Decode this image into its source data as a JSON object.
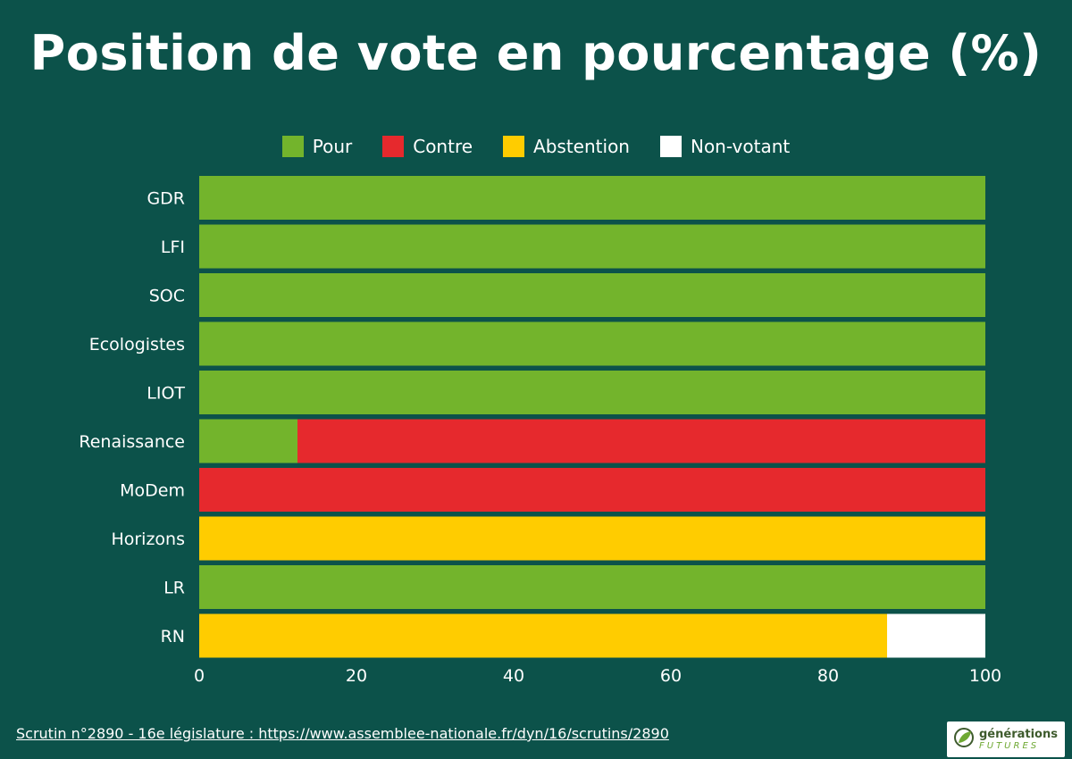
{
  "chart_data": {
    "type": "bar",
    "orientation": "horizontal",
    "stacked": true,
    "title": "Position de vote en pourcentage (%)",
    "categories": [
      "GDR",
      "LFI",
      "SOC",
      "Ecologistes",
      "LIOT",
      "Renaissance",
      "MoDem",
      "Horizons",
      "LR",
      "RN"
    ],
    "series": [
      {
        "name": "Pour",
        "color": "#73b42c",
        "values": [
          100,
          100,
          100,
          100,
          100,
          12.5,
          0,
          0,
          100,
          0
        ]
      },
      {
        "name": "Contre",
        "color": "#e6292d",
        "values": [
          0,
          0,
          0,
          0,
          0,
          87.5,
          100,
          0,
          0,
          0
        ]
      },
      {
        "name": "Abstention",
        "color": "#ffcc00",
        "values": [
          0,
          0,
          0,
          0,
          0,
          0,
          0,
          100,
          0,
          87.5
        ]
      },
      {
        "name": "Non-votant",
        "color": "#ffffff",
        "values": [
          0,
          0,
          0,
          0,
          0,
          0,
          0,
          0,
          0,
          12.5
        ]
      }
    ],
    "xlim": [
      0,
      100
    ],
    "xticks": [
      0,
      20,
      40,
      60,
      80,
      100
    ],
    "legend_position": "top",
    "grid": false
  },
  "footer": {
    "source_text": "Scrutin n°2890 - 16e législature : https://www.assemblee-nationale.fr/dyn/16/scrutins/2890"
  },
  "logo": {
    "icon": "leaf-icon",
    "line1": "générations",
    "line2": "FUTURES"
  }
}
